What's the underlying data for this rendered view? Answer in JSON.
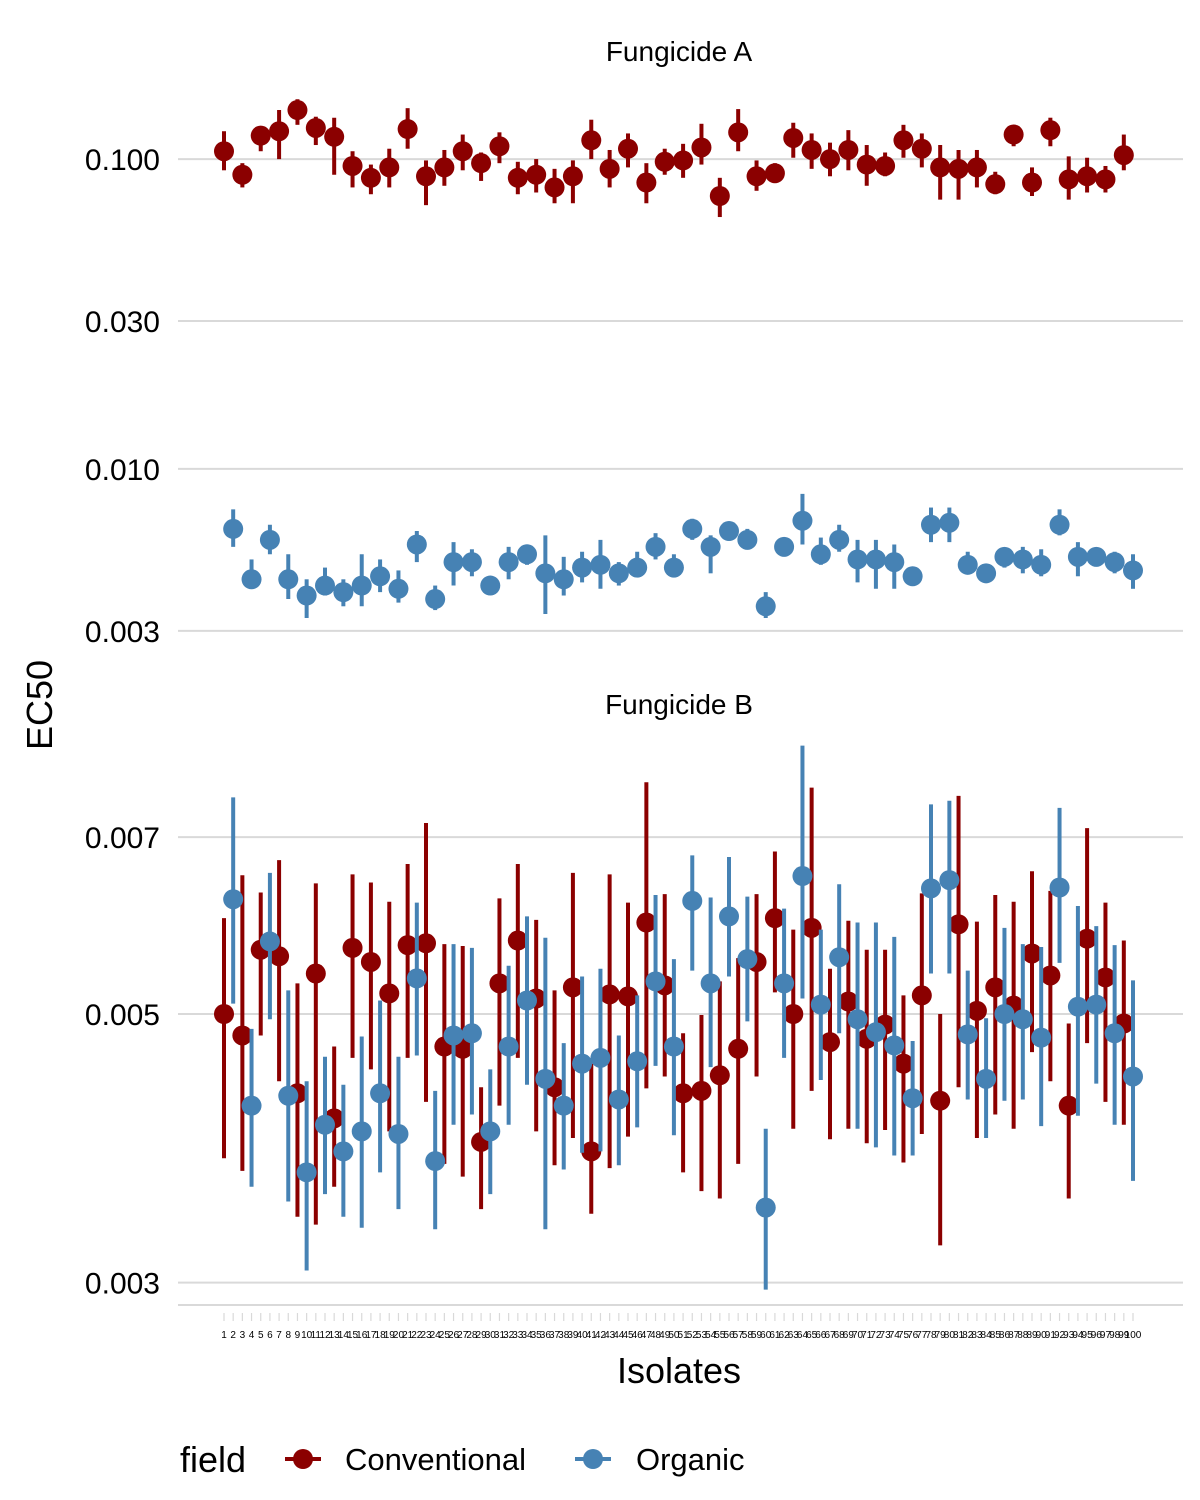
{
  "colors": {
    "conventional": "#8B0000",
    "organic": "#4682B4",
    "grid": "#D9D9D9",
    "background": "#FFFFFF"
  },
  "chart_data": {
    "type": "scatter",
    "subtype": "point-range (dot with interval), faceted",
    "ylabel": "EC50",
    "xlabel": "Isolates",
    "y_scale": "log10",
    "grid": "horizontal major gridlines only",
    "x_tick_labels_note": "isolates 1-100 (tick labels very small and overlapping); only 1-2 and 99-100 columns are partially legible",
    "legend": {
      "title": "field",
      "position": "bottom",
      "entries": [
        "Conventional",
        "Organic"
      ]
    },
    "facets": [
      {
        "title": "Fungicide A",
        "ylim": [
          0.0027,
          0.18
        ],
        "y_ticks": [
          0.1,
          0.03,
          0.01,
          0.003
        ],
        "y_tick_labels": [
          "0.100",
          "0.030",
          "0.010",
          "0.003"
        ],
        "series": [
          {
            "name": "Conventional",
            "x": [
              1,
              3,
              5,
              7,
              9,
              11,
              13,
              15,
              17,
              19,
              21,
              23,
              25,
              27,
              29,
              31,
              33,
              35,
              37,
              39,
              41,
              43,
              45,
              47,
              49,
              51,
              53,
              55,
              57,
              59,
              61,
              63,
              65,
              67,
              69,
              71,
              73,
              75,
              77,
              79,
              81,
              83,
              85,
              87,
              89,
              91,
              93,
              95,
              97,
              99
            ],
            "y": [
              0.106,
              0.089,
              0.119,
              0.123,
              0.144,
              0.126,
              0.118,
              0.095,
              0.087,
              0.094,
              0.125,
              0.088,
              0.094,
              0.106,
              0.097,
              0.11,
              0.087,
              0.089,
              0.081,
              0.088,
              0.115,
              0.093,
              0.108,
              0.084,
              0.098,
              0.099,
              0.109,
              0.076,
              0.122,
              0.088,
              0.09,
              0.117,
              0.107,
              0.1,
              0.107,
              0.096,
              0.095,
              0.115,
              0.108,
              0.094,
              0.093,
              0.094,
              0.083,
              0.12,
              0.084,
              0.124,
              0.086,
              0.088,
              0.086,
              0.103
            ],
            "lower": [
              0.092,
              0.081,
              0.106,
              0.1,
              0.129,
              0.111,
              0.089,
              0.081,
              0.077,
              0.081,
              0.108,
              0.071,
              0.082,
              0.092,
              0.085,
              0.097,
              0.077,
              0.078,
              0.072,
              0.072,
              0.1,
              0.081,
              0.094,
              0.072,
              0.089,
              0.087,
              0.096,
              0.065,
              0.106,
              0.079,
              0.085,
              0.101,
              0.093,
              0.088,
              0.092,
              0.082,
              0.088,
              0.101,
              0.094,
              0.074,
              0.074,
              0.081,
              0.077,
              0.11,
              0.076,
              0.11,
              0.074,
              0.078,
              0.078,
              0.092
            ],
            "upper": [
              0.123,
              0.097,
              0.126,
              0.144,
              0.156,
              0.137,
              0.136,
              0.106,
              0.096,
              0.108,
              0.146,
              0.099,
              0.107,
              0.12,
              0.105,
              0.122,
              0.098,
              0.1,
              0.093,
              0.099,
              0.134,
              0.107,
              0.121,
              0.097,
              0.108,
              0.112,
              0.13,
              0.087,
              0.145,
              0.099,
              0.097,
              0.131,
              0.121,
              0.113,
              0.124,
              0.111,
              0.105,
              0.129,
              0.121,
              0.111,
              0.107,
              0.107,
              0.091,
              0.128,
              0.094,
              0.136,
              0.102,
              0.101,
              0.095,
              0.12
            ]
          },
          {
            "name": "Organic",
            "x": [
              2,
              4,
              6,
              8,
              10,
              12,
              14,
              16,
              18,
              20,
              22,
              24,
              26,
              28,
              30,
              32,
              34,
              36,
              38,
              40,
              42,
              44,
              46,
              48,
              50,
              52,
              54,
              56,
              58,
              60,
              62,
              64,
              66,
              68,
              70,
              72,
              74,
              76,
              78,
              80,
              82,
              84,
              86,
              88,
              90,
              92,
              94,
              96,
              98,
              100
            ],
            "y": [
              0.0064,
              0.0044,
              0.0059,
              0.0044,
              0.0039,
              0.0042,
              0.004,
              0.0042,
              0.0045,
              0.0041,
              0.0057,
              0.0038,
              0.005,
              0.005,
              0.0042,
              0.005,
              0.0053,
              0.0046,
              0.0044,
              0.0048,
              0.0049,
              0.0046,
              0.0048,
              0.0056,
              0.0048,
              0.0064,
              0.0056,
              0.0063,
              0.0059,
              0.0036,
              0.0056,
              0.0068,
              0.0053,
              0.0059,
              0.0051,
              0.0051,
              0.005,
              0.0045,
              0.0066,
              0.0067,
              0.0049,
              0.0046,
              0.0052,
              0.0051,
              0.0049,
              0.0066,
              0.0052,
              0.0052,
              0.005,
              0.0047
            ],
            "lower": [
              0.0056,
              0.0041,
              0.0053,
              0.0038,
              0.0033,
              0.0039,
              0.0036,
              0.0036,
              0.004,
              0.0037,
              0.005,
              0.0035,
              0.0042,
              0.0045,
              0.004,
              0.0044,
              0.0049,
              0.0034,
              0.0039,
              0.0043,
              0.0041,
              0.0042,
              0.0045,
              0.0051,
              0.0045,
              0.0059,
              0.0046,
              0.0059,
              0.0056,
              0.0033,
              0.0053,
              0.0057,
              0.0049,
              0.0054,
              0.0043,
              0.0041,
              0.0041,
              0.0043,
              0.0058,
              0.0058,
              0.0047,
              0.0044,
              0.0048,
              0.0046,
              0.0045,
              0.0061,
              0.0045,
              0.0049,
              0.0046,
              0.0041
            ],
            "upper": [
              0.0074,
              0.0051,
              0.0066,
              0.0053,
              0.0044,
              0.0048,
              0.0044,
              0.0053,
              0.0051,
              0.0047,
              0.0063,
              0.0042,
              0.0058,
              0.0055,
              0.0045,
              0.0056,
              0.0057,
              0.0061,
              0.0052,
              0.0054,
              0.0059,
              0.005,
              0.0054,
              0.0062,
              0.0053,
              0.0069,
              0.0061,
              0.0067,
              0.0064,
              0.004,
              0.0059,
              0.0083,
              0.006,
              0.0066,
              0.0059,
              0.0059,
              0.0057,
              0.0047,
              0.0075,
              0.0075,
              0.0054,
              0.0049,
              0.0055,
              0.0056,
              0.0055,
              0.0074,
              0.0058,
              0.0055,
              0.0054,
              0.0053
            ]
          }
        ]
      },
      {
        "title": "Fungicide B",
        "ylim": [
          0.00293,
          0.0085
        ],
        "y_ticks": [
          0.007,
          0.005,
          0.003
        ],
        "y_tick_labels": [
          "0.007",
          "0.005",
          "0.003"
        ],
        "series": [
          {
            "name": "Conventional",
            "x": [
              1,
              3,
              5,
              7,
              9,
              11,
              13,
              15,
              17,
              19,
              21,
              23,
              25,
              27,
              29,
              31,
              33,
              35,
              37,
              39,
              41,
              43,
              45,
              47,
              49,
              51,
              53,
              55,
              57,
              59,
              61,
              63,
              65,
              67,
              69,
              71,
              73,
              75,
              77,
              79,
              81,
              83,
              85,
              87,
              89,
              91,
              93,
              95,
              97,
              99
            ],
            "y": [
              0.005,
              0.0048,
              0.00565,
              0.00558,
              0.0043,
              0.0054,
              0.0041,
              0.00567,
              0.00552,
              0.0052,
              0.0057,
              0.00572,
              0.0047,
              0.00468,
              0.00392,
              0.0053,
              0.00575,
              0.00515,
              0.00435,
              0.00526,
              0.00385,
              0.00519,
              0.00517,
              0.00595,
              0.00528,
              0.0043,
              0.00432,
              0.00445,
              0.00468,
              0.00552,
              0.006,
              0.005,
              0.00589,
              0.00474,
              0.00512,
              0.00477,
              0.0049,
              0.00455,
              0.00518,
              0.00424,
              0.00593,
              0.00503,
              0.00526,
              0.00508,
              0.00561,
              0.00538,
              0.0042,
              0.00577,
              0.00536,
              0.00491
            ],
            "lower": [
              0.0038,
              0.00371,
              0.0048,
              0.0044,
              0.0034,
              0.00335,
              0.0036,
              0.0046,
              0.0045,
              0.004,
              0.0046,
              0.00423,
              0.00376,
              0.00367,
              0.00345,
              0.0042,
              0.0046,
              0.004,
              0.00375,
              0.00395,
              0.00342,
              0.00373,
              0.00396,
              0.00434,
              0.00444,
              0.0037,
              0.00357,
              0.00352,
              0.00376,
              0.00444,
              0.00521,
              0.00402,
              0.00432,
              0.00394,
              0.00402,
              0.00391,
              0.00401,
              0.00377,
              0.00398,
              0.00322,
              0.00435,
              0.00395,
              0.00413,
              0.00402,
              0.00465,
              0.0044,
              0.00352,
              0.00473,
              0.00423,
              0.00405
            ],
            "upper": [
              0.006,
              0.00651,
              0.0063,
              0.0067,
              0.0053,
              0.00641,
              0.0047,
              0.00652,
              0.00642,
              0.00619,
              0.00665,
              0.00719,
              0.00571,
              0.00569,
              0.00435,
              0.00623,
              0.00665,
              0.00598,
              0.00523,
              0.00654,
              0.00455,
              0.00652,
              0.00618,
              0.00777,
              0.00628,
              0.00482,
              0.00499,
              0.00532,
              0.00556,
              0.00628,
              0.00681,
              0.00587,
              0.00769,
              0.00545,
              0.00597,
              0.00565,
              0.00565,
              0.00518,
              0.00629,
              0.005,
              0.00757,
              0.00596,
              0.00627,
              0.00619,
              0.00656,
              0.00632,
              0.00491,
              0.00712,
              0.00618,
              0.00575
            ]
          },
          {
            "name": "Organic",
            "x": [
              2,
              4,
              6,
              8,
              10,
              12,
              14,
              16,
              18,
              20,
              22,
              24,
              26,
              28,
              30,
              32,
              34,
              36,
              38,
              40,
              42,
              44,
              46,
              48,
              50,
              52,
              54,
              56,
              58,
              60,
              62,
              64,
              66,
              68,
              70,
              72,
              74,
              76,
              78,
              80,
              82,
              84,
              86,
              88,
              90,
              92,
              94,
              96,
              98,
              100
            ],
            "y": [
              0.00622,
              0.0042,
              0.00574,
              0.00428,
              0.0037,
              0.00405,
              0.00385,
              0.004,
              0.0043,
              0.00398,
              0.00535,
              0.00378,
              0.0048,
              0.00482,
              0.004,
              0.0047,
              0.00513,
              0.00442,
              0.0042,
              0.00455,
              0.0046,
              0.00425,
              0.00457,
              0.00532,
              0.0047,
              0.0062,
              0.0053,
              0.00602,
              0.00555,
              0.00346,
              0.0053,
              0.0065,
              0.00509,
              0.00557,
              0.00495,
              0.00483,
              0.00471,
              0.00426,
              0.00635,
              0.00645,
              0.00481,
              0.00442,
              0.005,
              0.00495,
              0.00478,
              0.00636,
              0.00507,
              0.00509,
              0.00482,
              0.00444
            ],
            "lower": [
              0.0051,
              0.0036,
              0.00495,
              0.0035,
              0.00307,
              0.00355,
              0.0034,
              0.00333,
              0.0037,
              0.00345,
              0.00462,
              0.00332,
              0.00405,
              0.00413,
              0.00355,
              0.00405,
              0.00437,
              0.00332,
              0.00372,
              0.00384,
              0.00385,
              0.00375,
              0.00403,
              0.00453,
              0.00397,
              0.00543,
              0.00452,
              0.00537,
              0.00493,
              0.00296,
              0.0046,
              0.00515,
              0.00441,
              0.00482,
              0.00402,
              0.00388,
              0.00382,
              0.00382,
              0.0054,
              0.0054,
              0.00425,
              0.00395,
              0.00424,
              0.00425,
              0.00404,
              0.00551,
              0.00412,
              0.00438,
              0.00405,
              0.00364
            ],
            "upper": [
              0.00755,
              0.00486,
              0.00654,
              0.00523,
              0.0044,
              0.00461,
              0.00437,
              0.00479,
              0.00513,
              0.00461,
              0.00618,
              0.00432,
              0.00571,
              0.00567,
              0.0045,
              0.00548,
              0.00602,
              0.00578,
              0.00473,
              0.00537,
              0.00545,
              0.0048,
              0.00518,
              0.00627,
              0.00555,
              0.00676,
              0.00624,
              0.00674,
              0.00625,
              0.00402,
              0.00611,
              0.00833,
              0.00587,
              0.0064,
              0.00595,
              0.00595,
              0.00579,
              0.00475,
              0.00745,
              0.0075,
              0.00543,
              0.00496,
              0.00589,
              0.00571,
              0.00568,
              0.0074,
              0.00614,
              0.00591,
              0.0057,
              0.00533
            ]
          }
        ]
      }
    ]
  }
}
